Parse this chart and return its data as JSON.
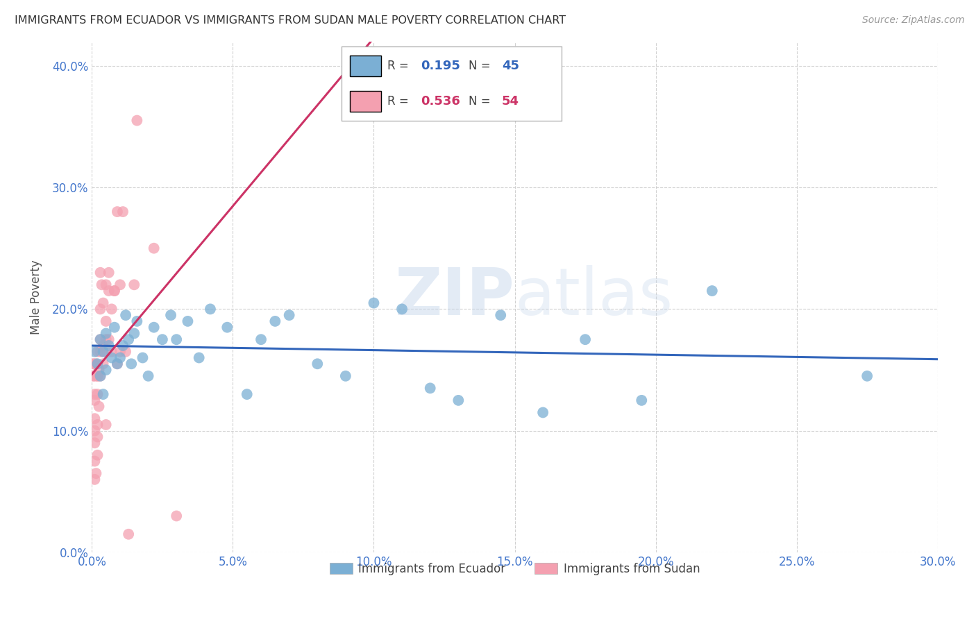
{
  "title": "IMMIGRANTS FROM ECUADOR VS IMMIGRANTS FROM SUDAN MALE POVERTY CORRELATION CHART",
  "source": "Source: ZipAtlas.com",
  "ylabel_label": "Male Poverty",
  "legend_ecuador": "Immigrants from Ecuador",
  "legend_sudan": "Immigrants from Sudan",
  "R_ecuador": 0.195,
  "N_ecuador": 45,
  "R_sudan": 0.536,
  "N_sudan": 54,
  "xlim": [
    0.0,
    0.3
  ],
  "ylim": [
    0.0,
    0.42
  ],
  "xticks": [
    0.0,
    0.05,
    0.1,
    0.15,
    0.2,
    0.25,
    0.3
  ],
  "yticks": [
    0.0,
    0.1,
    0.2,
    0.3,
    0.4
  ],
  "color_ecuador": "#7BAFD4",
  "color_sudan": "#F4A0B0",
  "trendline_ecuador": "#3366BB",
  "trendline_sudan": "#CC3366",
  "watermark": "ZIPatlas",
  "ecuador_x": [
    0.001,
    0.002,
    0.003,
    0.003,
    0.004,
    0.004,
    0.005,
    0.005,
    0.006,
    0.007,
    0.008,
    0.009,
    0.01,
    0.011,
    0.012,
    0.013,
    0.014,
    0.015,
    0.016,
    0.018,
    0.02,
    0.022,
    0.025,
    0.028,
    0.03,
    0.034,
    0.038,
    0.042,
    0.048,
    0.055,
    0.06,
    0.065,
    0.07,
    0.08,
    0.09,
    0.1,
    0.11,
    0.12,
    0.13,
    0.145,
    0.16,
    0.175,
    0.195,
    0.22,
    0.275
  ],
  "ecuador_y": [
    0.165,
    0.155,
    0.145,
    0.175,
    0.165,
    0.13,
    0.15,
    0.18,
    0.17,
    0.16,
    0.185,
    0.155,
    0.16,
    0.17,
    0.195,
    0.175,
    0.155,
    0.18,
    0.19,
    0.16,
    0.145,
    0.185,
    0.175,
    0.195,
    0.175,
    0.19,
    0.16,
    0.2,
    0.185,
    0.13,
    0.175,
    0.19,
    0.195,
    0.155,
    0.145,
    0.205,
    0.2,
    0.135,
    0.125,
    0.195,
    0.115,
    0.175,
    0.125,
    0.215,
    0.145
  ],
  "sudan_x": [
    0.0005,
    0.0005,
    0.001,
    0.001,
    0.001,
    0.001,
    0.001,
    0.001,
    0.001,
    0.001,
    0.001,
    0.0015,
    0.0015,
    0.002,
    0.002,
    0.002,
    0.002,
    0.002,
    0.002,
    0.002,
    0.0025,
    0.0025,
    0.003,
    0.003,
    0.003,
    0.003,
    0.003,
    0.0035,
    0.004,
    0.004,
    0.004,
    0.004,
    0.005,
    0.005,
    0.005,
    0.005,
    0.006,
    0.006,
    0.006,
    0.007,
    0.007,
    0.008,
    0.008,
    0.009,
    0.009,
    0.01,
    0.01,
    0.011,
    0.012,
    0.013,
    0.015,
    0.016,
    0.022,
    0.03
  ],
  "sudan_y": [
    0.155,
    0.145,
    0.13,
    0.145,
    0.1,
    0.09,
    0.155,
    0.11,
    0.125,
    0.075,
    0.06,
    0.155,
    0.065,
    0.145,
    0.095,
    0.08,
    0.13,
    0.105,
    0.145,
    0.165,
    0.15,
    0.12,
    0.165,
    0.175,
    0.2,
    0.23,
    0.145,
    0.22,
    0.17,
    0.205,
    0.155,
    0.165,
    0.19,
    0.22,
    0.175,
    0.105,
    0.175,
    0.23,
    0.215,
    0.2,
    0.165,
    0.215,
    0.215,
    0.28,
    0.155,
    0.165,
    0.22,
    0.28,
    0.165,
    0.015,
    0.22,
    0.355,
    0.25,
    0.03
  ]
}
